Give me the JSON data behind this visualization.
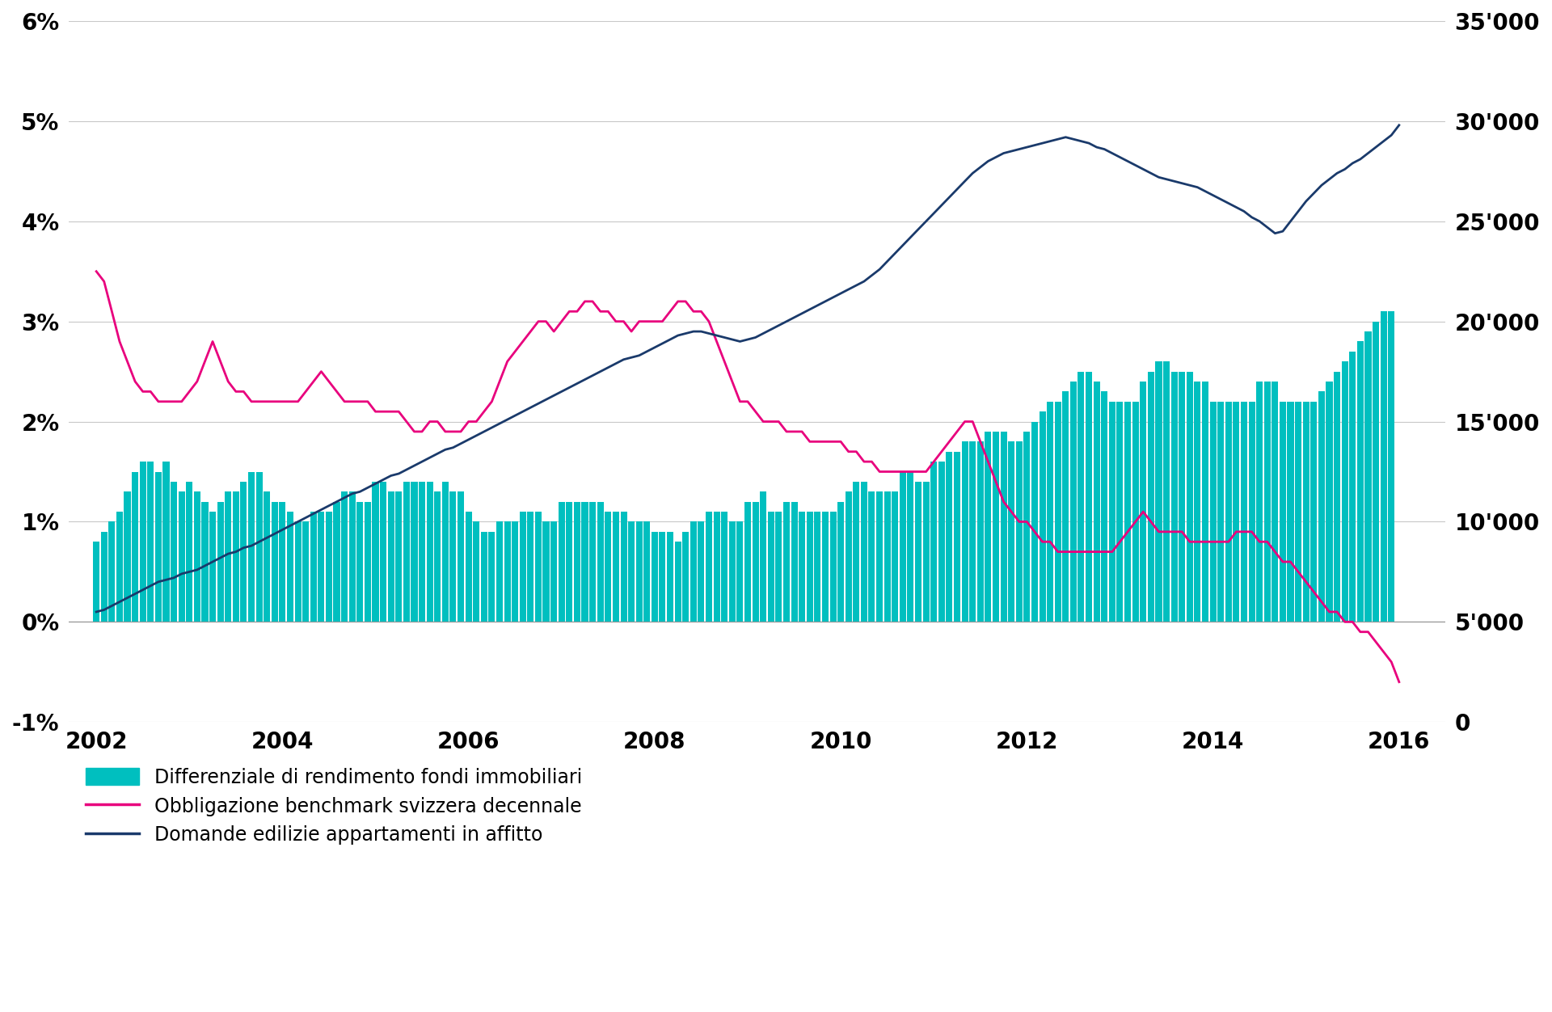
{
  "background_color": "#ffffff",
  "left_ylim": [
    -0.01,
    0.06
  ],
  "right_ylim": [
    0,
    35000
  ],
  "left_yticks": [
    -0.01,
    0.0,
    0.01,
    0.02,
    0.03,
    0.04,
    0.05,
    0.06
  ],
  "left_yticklabels": [
    "-1%",
    "0%",
    "1%",
    "2%",
    "3%",
    "4%",
    "5%",
    "6%"
  ],
  "right_yticks": [
    0,
    5000,
    10000,
    15000,
    20000,
    25000,
    30000,
    35000
  ],
  "right_yticklabels": [
    "0",
    "5'000",
    "10'000",
    "15'000",
    "20'000",
    "25'000",
    "30'000",
    "35'000"
  ],
  "xticks": [
    2002,
    2004,
    2006,
    2008,
    2010,
    2012,
    2014,
    2016
  ],
  "bar_color": "#00BFBF",
  "line1_color": "#E8007D",
  "line2_color": "#1A3A6B",
  "legend_items": [
    {
      "label": "Differenziale di rendimento fondi immobiliari",
      "color": "#00BFBF",
      "type": "bar"
    },
    {
      "label": "Obbligazione benchmark svizzera decennale",
      "color": "#E8007D",
      "type": "line"
    },
    {
      "label": "Domande edilizie appartamenti in affitto",
      "color": "#1A3A6B",
      "type": "line"
    }
  ],
  "bar_data_x": [
    2002.0,
    2002.083,
    2002.167,
    2002.25,
    2002.333,
    2002.417,
    2002.5,
    2002.583,
    2002.667,
    2002.75,
    2002.833,
    2002.917,
    2003.0,
    2003.083,
    2003.167,
    2003.25,
    2003.333,
    2003.417,
    2003.5,
    2003.583,
    2003.667,
    2003.75,
    2003.833,
    2003.917,
    2004.0,
    2004.083,
    2004.167,
    2004.25,
    2004.333,
    2004.417,
    2004.5,
    2004.583,
    2004.667,
    2004.75,
    2004.833,
    2004.917,
    2005.0,
    2005.083,
    2005.167,
    2005.25,
    2005.333,
    2005.417,
    2005.5,
    2005.583,
    2005.667,
    2005.75,
    2005.833,
    2005.917,
    2006.0,
    2006.083,
    2006.167,
    2006.25,
    2006.333,
    2006.417,
    2006.5,
    2006.583,
    2006.667,
    2006.75,
    2006.833,
    2006.917,
    2007.0,
    2007.083,
    2007.167,
    2007.25,
    2007.333,
    2007.417,
    2007.5,
    2007.583,
    2007.667,
    2007.75,
    2007.833,
    2007.917,
    2008.0,
    2008.083,
    2008.167,
    2008.25,
    2008.333,
    2008.417,
    2008.5,
    2008.583,
    2008.667,
    2008.75,
    2008.833,
    2008.917,
    2009.0,
    2009.083,
    2009.167,
    2009.25,
    2009.333,
    2009.417,
    2009.5,
    2009.583,
    2009.667,
    2009.75,
    2009.833,
    2009.917,
    2010.0,
    2010.083,
    2010.167,
    2010.25,
    2010.333,
    2010.417,
    2010.5,
    2010.583,
    2010.667,
    2010.75,
    2010.833,
    2010.917,
    2011.0,
    2011.083,
    2011.167,
    2011.25,
    2011.333,
    2011.417,
    2011.5,
    2011.583,
    2011.667,
    2011.75,
    2011.833,
    2011.917,
    2012.0,
    2012.083,
    2012.167,
    2012.25,
    2012.333,
    2012.417,
    2012.5,
    2012.583,
    2012.667,
    2012.75,
    2012.833,
    2012.917,
    2013.0,
    2013.083,
    2013.167,
    2013.25,
    2013.333,
    2013.417,
    2013.5,
    2013.583,
    2013.667,
    2013.75,
    2013.833,
    2013.917,
    2014.0,
    2014.083,
    2014.167,
    2014.25,
    2014.333,
    2014.417,
    2014.5,
    2014.583,
    2014.667,
    2014.75,
    2014.833,
    2014.917,
    2015.0,
    2015.083,
    2015.167,
    2015.25,
    2015.333,
    2015.417,
    2015.5,
    2015.583,
    2015.667,
    2015.75,
    2015.833,
    2015.917
  ],
  "bar_data_y": [
    0.008,
    0.009,
    0.01,
    0.011,
    0.013,
    0.015,
    0.016,
    0.016,
    0.015,
    0.016,
    0.014,
    0.013,
    0.014,
    0.013,
    0.012,
    0.011,
    0.012,
    0.013,
    0.013,
    0.014,
    0.015,
    0.015,
    0.013,
    0.012,
    0.012,
    0.011,
    0.01,
    0.01,
    0.011,
    0.011,
    0.011,
    0.012,
    0.013,
    0.013,
    0.012,
    0.012,
    0.014,
    0.014,
    0.013,
    0.013,
    0.014,
    0.014,
    0.014,
    0.014,
    0.013,
    0.014,
    0.013,
    0.013,
    0.011,
    0.01,
    0.009,
    0.009,
    0.01,
    0.01,
    0.01,
    0.011,
    0.011,
    0.011,
    0.01,
    0.01,
    0.012,
    0.012,
    0.012,
    0.012,
    0.012,
    0.012,
    0.011,
    0.011,
    0.011,
    0.01,
    0.01,
    0.01,
    0.009,
    0.009,
    0.009,
    0.008,
    0.009,
    0.01,
    0.01,
    0.011,
    0.011,
    0.011,
    0.01,
    0.01,
    0.012,
    0.012,
    0.013,
    0.011,
    0.011,
    0.012,
    0.012,
    0.011,
    0.011,
    0.011,
    0.011,
    0.011,
    0.012,
    0.013,
    0.014,
    0.014,
    0.013,
    0.013,
    0.013,
    0.013,
    0.015,
    0.015,
    0.014,
    0.014,
    0.016,
    0.016,
    0.017,
    0.017,
    0.018,
    0.018,
    0.018,
    0.019,
    0.019,
    0.019,
    0.018,
    0.018,
    0.019,
    0.02,
    0.021,
    0.022,
    0.022,
    0.023,
    0.024,
    0.025,
    0.025,
    0.024,
    0.023,
    0.022,
    0.022,
    0.022,
    0.022,
    0.024,
    0.025,
    0.026,
    0.026,
    0.025,
    0.025,
    0.025,
    0.024,
    0.024,
    0.022,
    0.022,
    0.022,
    0.022,
    0.022,
    0.022,
    0.024,
    0.024,
    0.024,
    0.022,
    0.022,
    0.022,
    0.022,
    0.022,
    0.023,
    0.024,
    0.025,
    0.026,
    0.027,
    0.028,
    0.029,
    0.03,
    0.031,
    0.031
  ],
  "line1_x": [
    2002.0,
    2002.083,
    2002.167,
    2002.25,
    2002.333,
    2002.417,
    2002.5,
    2002.583,
    2002.667,
    2002.75,
    2002.833,
    2002.917,
    2003.0,
    2003.083,
    2003.167,
    2003.25,
    2003.333,
    2003.417,
    2003.5,
    2003.583,
    2003.667,
    2003.75,
    2003.833,
    2003.917,
    2004.0,
    2004.083,
    2004.167,
    2004.25,
    2004.333,
    2004.417,
    2004.5,
    2004.583,
    2004.667,
    2004.75,
    2004.833,
    2004.917,
    2005.0,
    2005.083,
    2005.167,
    2005.25,
    2005.333,
    2005.417,
    2005.5,
    2005.583,
    2005.667,
    2005.75,
    2005.833,
    2005.917,
    2006.0,
    2006.083,
    2006.167,
    2006.25,
    2006.333,
    2006.417,
    2006.5,
    2006.583,
    2006.667,
    2006.75,
    2006.833,
    2006.917,
    2007.0,
    2007.083,
    2007.167,
    2007.25,
    2007.333,
    2007.417,
    2007.5,
    2007.583,
    2007.667,
    2007.75,
    2007.833,
    2007.917,
    2008.0,
    2008.083,
    2008.167,
    2008.25,
    2008.333,
    2008.417,
    2008.5,
    2008.583,
    2008.667,
    2008.75,
    2008.833,
    2008.917,
    2009.0,
    2009.083,
    2009.167,
    2009.25,
    2009.333,
    2009.417,
    2009.5,
    2009.583,
    2009.667,
    2009.75,
    2009.833,
    2009.917,
    2010.0,
    2010.083,
    2010.167,
    2010.25,
    2010.333,
    2010.417,
    2010.5,
    2010.583,
    2010.667,
    2010.75,
    2010.833,
    2010.917,
    2011.0,
    2011.083,
    2011.167,
    2011.25,
    2011.333,
    2011.417,
    2011.5,
    2011.583,
    2011.667,
    2011.75,
    2011.833,
    2011.917,
    2012.0,
    2012.083,
    2012.167,
    2012.25,
    2012.333,
    2012.417,
    2012.5,
    2012.583,
    2012.667,
    2012.75,
    2012.833,
    2012.917,
    2013.0,
    2013.083,
    2013.167,
    2013.25,
    2013.333,
    2013.417,
    2013.5,
    2013.583,
    2013.667,
    2013.75,
    2013.833,
    2013.917,
    2014.0,
    2014.083,
    2014.167,
    2014.25,
    2014.333,
    2014.417,
    2014.5,
    2014.583,
    2014.667,
    2014.75,
    2014.833,
    2014.917,
    2015.0,
    2015.083,
    2015.167,
    2015.25,
    2015.333,
    2015.417,
    2015.5,
    2015.583,
    2015.667,
    2015.75,
    2015.833,
    2015.917,
    2016.0
  ],
  "line1_y": [
    0.035,
    0.034,
    0.031,
    0.028,
    0.026,
    0.024,
    0.023,
    0.023,
    0.022,
    0.022,
    0.022,
    0.022,
    0.023,
    0.024,
    0.026,
    0.028,
    0.026,
    0.024,
    0.023,
    0.023,
    0.022,
    0.022,
    0.022,
    0.022,
    0.022,
    0.022,
    0.022,
    0.023,
    0.024,
    0.025,
    0.024,
    0.023,
    0.022,
    0.022,
    0.022,
    0.022,
    0.021,
    0.021,
    0.021,
    0.021,
    0.02,
    0.019,
    0.019,
    0.02,
    0.02,
    0.019,
    0.019,
    0.019,
    0.02,
    0.02,
    0.021,
    0.022,
    0.024,
    0.026,
    0.027,
    0.028,
    0.029,
    0.03,
    0.03,
    0.029,
    0.03,
    0.031,
    0.031,
    0.032,
    0.032,
    0.031,
    0.031,
    0.03,
    0.03,
    0.029,
    0.03,
    0.03,
    0.03,
    0.03,
    0.031,
    0.032,
    0.032,
    0.031,
    0.031,
    0.03,
    0.028,
    0.026,
    0.024,
    0.022,
    0.022,
    0.021,
    0.02,
    0.02,
    0.02,
    0.019,
    0.019,
    0.019,
    0.018,
    0.018,
    0.018,
    0.018,
    0.018,
    0.017,
    0.017,
    0.016,
    0.016,
    0.015,
    0.015,
    0.015,
    0.015,
    0.015,
    0.015,
    0.015,
    0.016,
    0.017,
    0.018,
    0.019,
    0.02,
    0.02,
    0.018,
    0.016,
    0.014,
    0.012,
    0.011,
    0.01,
    0.01,
    0.009,
    0.008,
    0.008,
    0.007,
    0.007,
    0.007,
    0.007,
    0.007,
    0.007,
    0.007,
    0.007,
    0.008,
    0.009,
    0.01,
    0.011,
    0.01,
    0.009,
    0.009,
    0.009,
    0.009,
    0.008,
    0.008,
    0.008,
    0.008,
    0.008,
    0.008,
    0.009,
    0.009,
    0.009,
    0.008,
    0.008,
    0.007,
    0.006,
    0.006,
    0.005,
    0.004,
    0.003,
    0.002,
    0.001,
    0.001,
    0.0,
    0.0,
    -0.001,
    -0.001,
    -0.002,
    -0.003,
    -0.004,
    -0.006
  ],
  "line2_x": [
    2002.0,
    2002.083,
    2002.167,
    2002.25,
    2002.333,
    2002.417,
    2002.5,
    2002.583,
    2002.667,
    2002.75,
    2002.833,
    2002.917,
    2003.0,
    2003.083,
    2003.167,
    2003.25,
    2003.333,
    2003.417,
    2003.5,
    2003.583,
    2003.667,
    2003.75,
    2003.833,
    2003.917,
    2004.0,
    2004.083,
    2004.167,
    2004.25,
    2004.333,
    2004.417,
    2004.5,
    2004.583,
    2004.667,
    2004.75,
    2004.833,
    2004.917,
    2005.0,
    2005.083,
    2005.167,
    2005.25,
    2005.333,
    2005.417,
    2005.5,
    2005.583,
    2005.667,
    2005.75,
    2005.833,
    2005.917,
    2006.0,
    2006.083,
    2006.167,
    2006.25,
    2006.333,
    2006.417,
    2006.5,
    2006.583,
    2006.667,
    2006.75,
    2006.833,
    2006.917,
    2007.0,
    2007.083,
    2007.167,
    2007.25,
    2007.333,
    2007.417,
    2007.5,
    2007.583,
    2007.667,
    2007.75,
    2007.833,
    2007.917,
    2008.0,
    2008.083,
    2008.167,
    2008.25,
    2008.333,
    2008.417,
    2008.5,
    2008.583,
    2008.667,
    2008.75,
    2008.833,
    2008.917,
    2009.0,
    2009.083,
    2009.167,
    2009.25,
    2009.333,
    2009.417,
    2009.5,
    2009.583,
    2009.667,
    2009.75,
    2009.833,
    2009.917,
    2010.0,
    2010.083,
    2010.167,
    2010.25,
    2010.333,
    2010.417,
    2010.5,
    2010.583,
    2010.667,
    2010.75,
    2010.833,
    2010.917,
    2011.0,
    2011.083,
    2011.167,
    2011.25,
    2011.333,
    2011.417,
    2011.5,
    2011.583,
    2011.667,
    2011.75,
    2011.833,
    2011.917,
    2012.0,
    2012.083,
    2012.167,
    2012.25,
    2012.333,
    2012.417,
    2012.5,
    2012.583,
    2012.667,
    2012.75,
    2012.833,
    2012.917,
    2013.0,
    2013.083,
    2013.167,
    2013.25,
    2013.333,
    2013.417,
    2013.5,
    2013.583,
    2013.667,
    2013.75,
    2013.833,
    2013.917,
    2014.0,
    2014.083,
    2014.167,
    2014.25,
    2014.333,
    2014.417,
    2014.5,
    2014.583,
    2014.667,
    2014.75,
    2014.833,
    2014.917,
    2015.0,
    2015.083,
    2015.167,
    2015.25,
    2015.333,
    2015.417,
    2015.5,
    2015.583,
    2015.667,
    2015.75,
    2015.833,
    2015.917,
    2016.0
  ],
  "line2_y": [
    5500,
    5600,
    5800,
    6000,
    6200,
    6400,
    6600,
    6800,
    7000,
    7100,
    7200,
    7400,
    7500,
    7600,
    7800,
    8000,
    8200,
    8400,
    8500,
    8700,
    8800,
    9000,
    9200,
    9400,
    9600,
    9800,
    10000,
    10200,
    10400,
    10600,
    10800,
    11000,
    11200,
    11400,
    11500,
    11700,
    11900,
    12100,
    12300,
    12400,
    12600,
    12800,
    13000,
    13200,
    13400,
    13600,
    13700,
    13900,
    14100,
    14300,
    14500,
    14700,
    14900,
    15100,
    15300,
    15500,
    15700,
    15900,
    16100,
    16300,
    16500,
    16700,
    16900,
    17100,
    17300,
    17500,
    17700,
    17900,
    18100,
    18200,
    18300,
    18500,
    18700,
    18900,
    19100,
    19300,
    19400,
    19500,
    19500,
    19400,
    19300,
    19200,
    19100,
    19000,
    19100,
    19200,
    19400,
    19600,
    19800,
    20000,
    20200,
    20400,
    20600,
    20800,
    21000,
    21200,
    21400,
    21600,
    21800,
    22000,
    22300,
    22600,
    23000,
    23400,
    23800,
    24200,
    24600,
    25000,
    25400,
    25800,
    26200,
    26600,
    27000,
    27400,
    27700,
    28000,
    28200,
    28400,
    28500,
    28600,
    28700,
    28800,
    28900,
    29000,
    29100,
    29200,
    29100,
    29000,
    28900,
    28700,
    28600,
    28400,
    28200,
    28000,
    27800,
    27600,
    27400,
    27200,
    27100,
    27000,
    26900,
    26800,
    26700,
    26500,
    26300,
    26100,
    25900,
    25700,
    25500,
    25200,
    25000,
    24700,
    24400,
    24500,
    25000,
    25500,
    26000,
    26400,
    26800,
    27100,
    27400,
    27600,
    27900,
    28100,
    28400,
    28700,
    29000,
    29300,
    29800
  ]
}
